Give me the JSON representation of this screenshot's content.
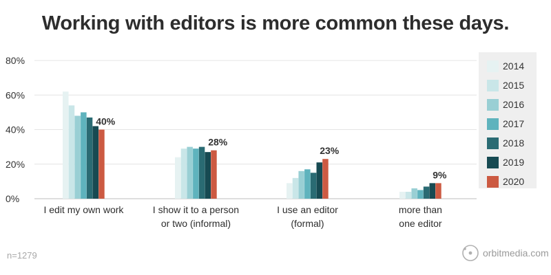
{
  "title": "Working with editors is more common these days.",
  "footer": {
    "sample": "n=1279",
    "brand": "orbitmedia.com",
    "brand_icon": "orbit-logo-icon"
  },
  "colors": {
    "2014": "#e6f2f2",
    "2015": "#c9e6e8",
    "2016": "#99cfd4",
    "2017": "#5fb3bd",
    "2018": "#2a6b73",
    "2019": "#174a52",
    "2020": "#cc5a42"
  },
  "chart_data": {
    "type": "bar",
    "categories": [
      [
        "I edit my own work"
      ],
      [
        "I show it to a person",
        "or two (informal)"
      ],
      [
        "I use an editor",
        "(formal)"
      ],
      [
        "more than",
        "one editor"
      ]
    ],
    "series": [
      {
        "name": "2014",
        "values": [
          62,
          24,
          9,
          4
        ]
      },
      {
        "name": "2015",
        "values": [
          54,
          29,
          12,
          4
        ]
      },
      {
        "name": "2016",
        "values": [
          48,
          30,
          16,
          6
        ]
      },
      {
        "name": "2017",
        "values": [
          50,
          29,
          17,
          5
        ]
      },
      {
        "name": "2018",
        "values": [
          47,
          30,
          15,
          7
        ]
      },
      {
        "name": "2019",
        "values": [
          42,
          27,
          21,
          9
        ]
      },
      {
        "name": "2020",
        "values": [
          40,
          28,
          23,
          9
        ]
      }
    ],
    "data_labels": [
      "40%",
      "28%",
      "23%",
      "9%"
    ],
    "yticks": [
      "0%",
      "20%",
      "40%",
      "60%",
      "80%"
    ],
    "ylim": [
      0,
      80
    ],
    "grid": true,
    "legend": "right"
  }
}
